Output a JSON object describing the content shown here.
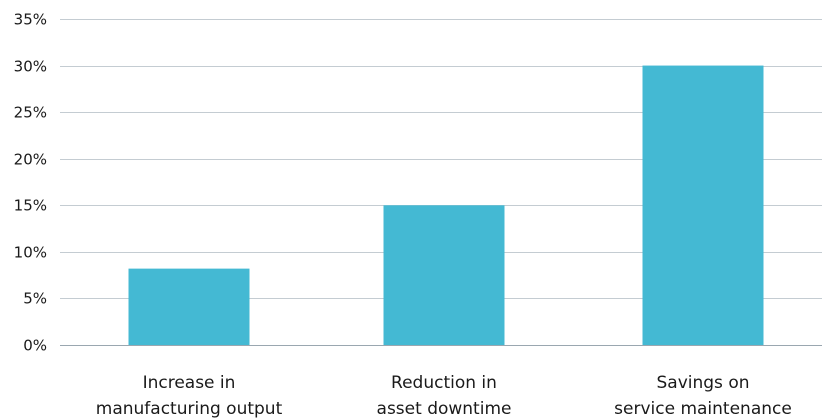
{
  "chart_data": {
    "type": "bar",
    "categories": [
      [
        "Increase in",
        "manufacturing output"
      ],
      [
        "Reduction in",
        "asset downtime"
      ],
      [
        "Savings on",
        "service maintenance"
      ]
    ],
    "values": [
      8.2,
      15,
      30
    ],
    "unit": "%",
    "ylim": [
      0,
      35
    ],
    "yticks": [
      "0%",
      "5%",
      "10%",
      "15%",
      "20%",
      "25%",
      "30%",
      "35%"
    ],
    "ytick_values": [
      0,
      5,
      10,
      15,
      20,
      25,
      30,
      35
    ],
    "grid": true,
    "legend": "none",
    "title": "",
    "xlabel": "",
    "ylabel": "",
    "colors": {
      "bar": "#44b9d3",
      "grid": "#c4ccd2",
      "text": "#1a1a1a"
    }
  }
}
